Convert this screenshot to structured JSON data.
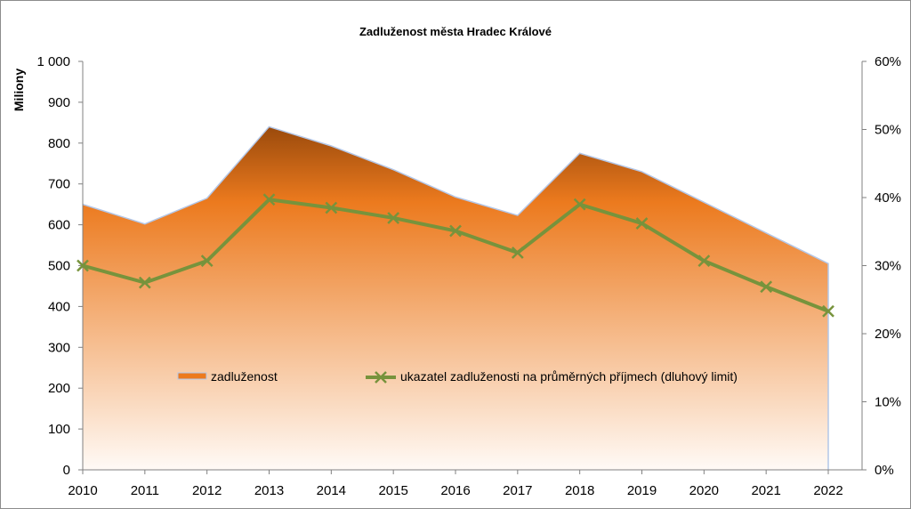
{
  "chart_data": {
    "type": "area",
    "title": "Zadluženost města Hradec Králové",
    "ylabel": "Miliony",
    "x": [
      "2010",
      "2011",
      "2012",
      "2013",
      "2014",
      "2015",
      "2016",
      "2017",
      "2018",
      "2019",
      "2020",
      "2021",
      "2022"
    ],
    "y_ticks": [
      "0",
      "100",
      "200",
      "300",
      "400",
      "500",
      "600",
      "700",
      "800",
      "900",
      "1 000"
    ],
    "y2_ticks": [
      "0%",
      "10%",
      "20%",
      "30%",
      "40%",
      "50%",
      "60%"
    ],
    "ylim": [
      0,
      1000
    ],
    "y2lim": [
      0,
      0.6
    ],
    "grid": false,
    "legend_placement": "inside-lower-center",
    "series": [
      {
        "name": "zadluženost",
        "type": "area",
        "axis": "left",
        "color_top": "#9a4a0c",
        "color_mid": "#ec7a1e",
        "color_bottom": "#fffaf6",
        "edge_color": "#b4c7e7",
        "values": [
          650,
          602,
          665,
          840,
          793,
          735,
          668,
          623,
          775,
          730,
          655,
          580,
          505
        ]
      },
      {
        "name": "ukazatel zadluženosti na průměrných příjmech (dluhový limit)",
        "type": "line",
        "axis": "right",
        "color": "#77933c",
        "marker": "x",
        "values": [
          0.3,
          0.275,
          0.307,
          0.397,
          0.385,
          0.37,
          0.351,
          0.319,
          0.39,
          0.362,
          0.307,
          0.269,
          0.233
        ]
      }
    ]
  }
}
